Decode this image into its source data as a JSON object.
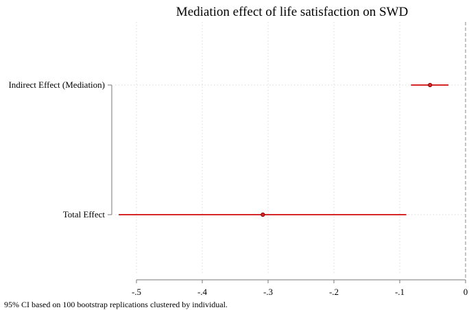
{
  "chart_data": {
    "type": "scatter",
    "title": "Mediation effect of life satisfaction on SWD",
    "xlabel": "",
    "ylabel": "",
    "categories": [
      "Indirect Effect (Mediation)",
      "Total Effect"
    ],
    "points": [
      {
        "label": "Indirect Effect (Mediation)",
        "estimate": -0.054,
        "ci_low": -0.083,
        "ci_high": -0.026
      },
      {
        "label": "Total Effect",
        "estimate": -0.308,
        "ci_low": -0.527,
        "ci_high": -0.09
      }
    ],
    "xlim": [
      -0.527,
      0.0
    ],
    "xticks": [
      {
        "value": -0.5,
        "label": "-.5"
      },
      {
        "value": -0.4,
        "label": "-.4"
      },
      {
        "value": -0.3,
        "label": "-.3"
      },
      {
        "value": -0.2,
        "label": "-.2"
      },
      {
        "value": -0.1,
        "label": "-.1"
      },
      {
        "value": 0.0,
        "label": "0"
      }
    ],
    "reference_line": 0,
    "grid": true,
    "colors": {
      "series": "#d62728",
      "grid": "#d9d9d9",
      "axis": "#777777",
      "refline": "#888888"
    },
    "note": "95% CI based on 100 bootstrap replications clustered by individual."
  }
}
